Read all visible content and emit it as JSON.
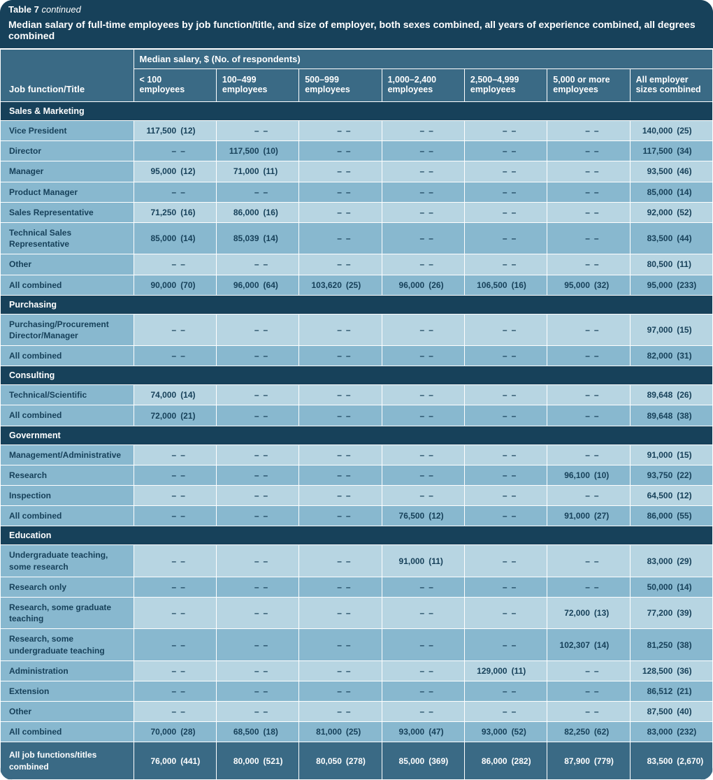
{
  "title_label": "Table 7",
  "title_cont": "continued",
  "subtitle": "Median salary of full-time employees by job function/title, and size of employer, both sexes combined, all years of experience combined, all degrees combined",
  "spanner": "Median salary, $ (No. of respondents)",
  "rowhead": "Job function/Title",
  "columns": [
    "< 100 employees",
    "100–499 employees",
    "500–999 employees",
    "1,000–2,400 employees",
    "2,500–4,999 employees",
    "5,000 or more employees",
    "All employer sizes combined"
  ],
  "dash": "–",
  "sections": [
    {
      "title": "Sales & Marketing",
      "rows": [
        {
          "label": "Vice President",
          "cells": [
            {
              "s": "117,500",
              "n": "12"
            },
            null,
            null,
            null,
            null,
            null,
            {
              "s": "140,000",
              "n": "25"
            }
          ]
        },
        {
          "label": "Director",
          "cells": [
            null,
            {
              "s": "117,500",
              "n": "10"
            },
            null,
            null,
            null,
            null,
            {
              "s": "117,500",
              "n": "34"
            }
          ]
        },
        {
          "label": "Manager",
          "cells": [
            {
              "s": "95,000",
              "n": "12"
            },
            {
              "s": "71,000",
              "n": "11"
            },
            null,
            null,
            null,
            null,
            {
              "s": "93,500",
              "n": "46"
            }
          ]
        },
        {
          "label": "Product Manager",
          "cells": [
            null,
            null,
            null,
            null,
            null,
            null,
            {
              "s": "85,000",
              "n": "14"
            }
          ]
        },
        {
          "label": "Sales Representative",
          "cells": [
            {
              "s": "71,250",
              "n": "16"
            },
            {
              "s": "86,000",
              "n": "16"
            },
            null,
            null,
            null,
            null,
            {
              "s": "92,000",
              "n": "52"
            }
          ]
        },
        {
          "label": "Technical Sales Representative",
          "cells": [
            {
              "s": "85,000",
              "n": "14"
            },
            {
              "s": "85,039",
              "n": "14"
            },
            null,
            null,
            null,
            null,
            {
              "s": "83,500",
              "n": "44"
            }
          ]
        },
        {
          "label": "Other",
          "cells": [
            null,
            null,
            null,
            null,
            null,
            null,
            {
              "s": "80,500",
              "n": "11"
            }
          ]
        },
        {
          "label": "All combined",
          "cells": [
            {
              "s": "90,000",
              "n": "70"
            },
            {
              "s": "96,000",
              "n": "64"
            },
            {
              "s": "103,620",
              "n": "25"
            },
            {
              "s": "96,000",
              "n": "26"
            },
            {
              "s": "106,500",
              "n": "16"
            },
            {
              "s": "95,000",
              "n": "32"
            },
            {
              "s": "95,000",
              "n": "233"
            }
          ]
        }
      ]
    },
    {
      "title": "Purchasing",
      "rows": [
        {
          "label": "Purchasing/Procurement Director/Manager",
          "cells": [
            null,
            null,
            null,
            null,
            null,
            null,
            {
              "s": "97,000",
              "n": "15"
            }
          ]
        },
        {
          "label": "All combined",
          "cells": [
            null,
            null,
            null,
            null,
            null,
            null,
            {
              "s": "82,000",
              "n": "31"
            }
          ]
        }
      ]
    },
    {
      "title": "Consulting",
      "rows": [
        {
          "label": "Technical/Scientific",
          "cells": [
            {
              "s": "74,000",
              "n": "14"
            },
            null,
            null,
            null,
            null,
            null,
            {
              "s": "89,648",
              "n": "26"
            }
          ]
        },
        {
          "label": "All combined",
          "cells": [
            {
              "s": "72,000",
              "n": "21"
            },
            null,
            null,
            null,
            null,
            null,
            {
              "s": "89,648",
              "n": "38"
            }
          ]
        }
      ]
    },
    {
      "title": "Government",
      "rows": [
        {
          "label": "Management/Administrative",
          "cells": [
            null,
            null,
            null,
            null,
            null,
            null,
            {
              "s": "91,000",
              "n": "15"
            }
          ]
        },
        {
          "label": "Research",
          "cells": [
            null,
            null,
            null,
            null,
            null,
            {
              "s": "96,100",
              "n": "10"
            },
            {
              "s": "93,750",
              "n": "22"
            }
          ]
        },
        {
          "label": "Inspection",
          "cells": [
            null,
            null,
            null,
            null,
            null,
            null,
            {
              "s": "64,500",
              "n": "12"
            }
          ]
        },
        {
          "label": "All combined",
          "cells": [
            null,
            null,
            null,
            {
              "s": "76,500",
              "n": "12"
            },
            null,
            {
              "s": "91,000",
              "n": "27"
            },
            {
              "s": "86,000",
              "n": "55"
            }
          ]
        }
      ]
    },
    {
      "title": "Education",
      "rows": [
        {
          "label": "Undergraduate teaching, some research",
          "cells": [
            null,
            null,
            null,
            {
              "s": "91,000",
              "n": "11"
            },
            null,
            null,
            {
              "s": "83,000",
              "n": "29"
            }
          ]
        },
        {
          "label": "Research only",
          "cells": [
            null,
            null,
            null,
            null,
            null,
            null,
            {
              "s": "50,000",
              "n": "14"
            }
          ]
        },
        {
          "label": "Research, some graduate teaching",
          "cells": [
            null,
            null,
            null,
            null,
            null,
            {
              "s": "72,000",
              "n": "13"
            },
            {
              "s": "77,200",
              "n": "39"
            }
          ]
        },
        {
          "label": "Research, some undergraduate teaching",
          "cells": [
            null,
            null,
            null,
            null,
            null,
            {
              "s": "102,307",
              "n": "14"
            },
            {
              "s": "81,250",
              "n": "38"
            }
          ]
        },
        {
          "label": "Administration",
          "cells": [
            null,
            null,
            null,
            null,
            {
              "s": "129,000",
              "n": "11"
            },
            null,
            {
              "s": "128,500",
              "n": "36"
            }
          ]
        },
        {
          "label": "Extension",
          "cells": [
            null,
            null,
            null,
            null,
            null,
            null,
            {
              "s": "86,512",
              "n": "21"
            }
          ]
        },
        {
          "label": "Other",
          "cells": [
            null,
            null,
            null,
            null,
            null,
            null,
            {
              "s": "87,500",
              "n": "40"
            }
          ]
        },
        {
          "label": "All combined",
          "cells": [
            {
              "s": "70,000",
              "n": "28"
            },
            {
              "s": "68,500",
              "n": "18"
            },
            {
              "s": "81,000",
              "n": "25"
            },
            {
              "s": "93,000",
              "n": "47"
            },
            {
              "s": "93,000",
              "n": "52"
            },
            {
              "s": "82,250",
              "n": "62"
            },
            {
              "s": "83,000",
              "n": "232"
            }
          ]
        }
      ]
    }
  ],
  "grand_total": {
    "label": "All job functions/titles combined",
    "cells": [
      {
        "s": "76,000",
        "n": "441"
      },
      {
        "s": "80,000",
        "n": "521"
      },
      {
        "s": "80,050",
        "n": "278"
      },
      {
        "s": "85,000",
        "n": "369"
      },
      {
        "s": "86,000",
        "n": "282"
      },
      {
        "s": "87,900",
        "n": "779"
      },
      {
        "s": "83,500",
        "n": "2,670"
      }
    ]
  },
  "colors": {
    "dark": "#17415a",
    "mid": "#3a6a85",
    "medlight": "#88b8cf",
    "light": "#b7d5e2",
    "border": "#ffffff"
  }
}
